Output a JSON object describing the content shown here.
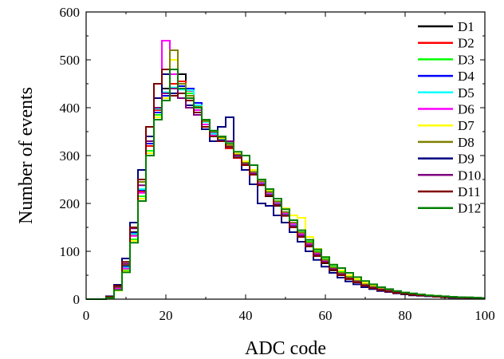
{
  "chart_data": {
    "type": "line",
    "step": true,
    "title": "",
    "xlabel": "ADC code",
    "ylabel": "Number of events",
    "xlim": [
      0,
      100
    ],
    "ylim": [
      0,
      600
    ],
    "xticks": [
      0,
      20,
      40,
      60,
      80,
      100
    ],
    "yticks": [
      0,
      100,
      200,
      300,
      400,
      500,
      600
    ],
    "grid": false,
    "legend_position": "top-right",
    "series": [
      {
        "name": "D1",
        "color": "#000000",
        "x": [
          0,
          5,
          7,
          9,
          11,
          13,
          15,
          17,
          19,
          21,
          23,
          25,
          27,
          29,
          31,
          33,
          35,
          37,
          39,
          41,
          43,
          45,
          47,
          49,
          51,
          53,
          55,
          57,
          59,
          61,
          63,
          65,
          67,
          69,
          71,
          73,
          75,
          77,
          79,
          81,
          83,
          85,
          87,
          89,
          91,
          93,
          95,
          97,
          99
        ],
        "values": [
          0,
          5,
          25,
          70,
          140,
          230,
          330,
          400,
          440,
          450,
          470,
          440,
          400,
          370,
          350,
          330,
          320,
          300,
          280,
          260,
          240,
          215,
          195,
          175,
          150,
          130,
          110,
          90,
          75,
          60,
          50,
          42,
          35,
          28,
          24,
          20,
          17,
          14,
          12,
          10,
          8,
          7,
          6,
          5,
          4,
          4,
          3,
          3,
          2
        ]
      },
      {
        "name": "D2",
        "color": "#ff0000",
        "x": [
          0,
          5,
          7,
          9,
          11,
          13,
          15,
          17,
          19,
          21,
          23,
          25,
          27,
          29,
          31,
          33,
          35,
          37,
          39,
          41,
          43,
          45,
          47,
          49,
          51,
          53,
          55,
          57,
          59,
          61,
          63,
          65,
          67,
          69,
          71,
          73,
          75,
          77,
          79,
          81,
          83,
          85,
          87,
          89,
          91,
          93,
          95,
          97,
          99
        ],
        "values": [
          0,
          4,
          22,
          65,
          135,
          225,
          320,
          395,
          430,
          450,
          455,
          435,
          400,
          370,
          345,
          330,
          315,
          295,
          280,
          262,
          242,
          220,
          200,
          178,
          155,
          135,
          115,
          95,
          80,
          65,
          55,
          45,
          38,
          30,
          25,
          21,
          18,
          15,
          12,
          10,
          9,
          7,
          6,
          5,
          4,
          4,
          3,
          3,
          2
        ]
      },
      {
        "name": "D3",
        "color": "#00ff00",
        "x": [
          0,
          5,
          7,
          9,
          11,
          13,
          15,
          17,
          19,
          21,
          23,
          25,
          27,
          29,
          31,
          33,
          35,
          37,
          39,
          41,
          43,
          45,
          47,
          49,
          51,
          53,
          55,
          57,
          59,
          61,
          63,
          65,
          67,
          69,
          71,
          73,
          75,
          77,
          79,
          81,
          83,
          85,
          87,
          89,
          91,
          93,
          95,
          97,
          99
        ],
        "values": [
          0,
          3,
          20,
          60,
          125,
          215,
          310,
          385,
          420,
          430,
          440,
          430,
          405,
          375,
          350,
          335,
          320,
          300,
          285,
          266,
          246,
          225,
          205,
          182,
          160,
          140,
          120,
          100,
          84,
          68,
          57,
          47,
          40,
          32,
          27,
          22,
          19,
          16,
          13,
          11,
          9,
          8,
          6,
          5,
          5,
          4,
          3,
          3,
          2
        ]
      },
      {
        "name": "D4",
        "color": "#0000ff",
        "x": [
          0,
          5,
          7,
          9,
          11,
          13,
          15,
          17,
          19,
          21,
          23,
          25,
          27,
          29,
          31,
          33,
          35,
          37,
          39,
          41,
          43,
          45,
          47,
          49,
          51,
          53,
          55,
          57,
          59,
          61,
          63,
          65,
          67,
          69,
          71,
          73,
          75,
          77,
          79,
          81,
          83,
          85,
          87,
          89,
          91,
          93,
          95,
          97,
          99
        ],
        "values": [
          0,
          4,
          24,
          68,
          138,
          228,
          325,
          390,
          425,
          440,
          445,
          440,
          410,
          372,
          346,
          332,
          318,
          298,
          280,
          262,
          240,
          218,
          198,
          176,
          152,
          132,
          112,
          92,
          78,
          63,
          52,
          43,
          36,
          29,
          24,
          20,
          17,
          14,
          12,
          10,
          8,
          7,
          6,
          5,
          4,
          4,
          3,
          3,
          2
        ]
      },
      {
        "name": "D5",
        "color": "#00ffff",
        "x": [
          0,
          5,
          7,
          9,
          11,
          13,
          15,
          17,
          19,
          21,
          23,
          25,
          27,
          29,
          31,
          33,
          35,
          37,
          39,
          41,
          43,
          45,
          47,
          49,
          51,
          53,
          55,
          57,
          59,
          61,
          63,
          65,
          67,
          69,
          71,
          73,
          75,
          77,
          79,
          81,
          83,
          85,
          87,
          89,
          91,
          93,
          95,
          97,
          99
        ],
        "values": [
          0,
          4,
          23,
          66,
          136,
          230,
          330,
          398,
          432,
          442,
          438,
          436,
          405,
          370,
          345,
          330,
          318,
          298,
          282,
          263,
          243,
          220,
          200,
          178,
          155,
          134,
          114,
          94,
          79,
          64,
          53,
          44,
          37,
          30,
          25,
          21,
          18,
          15,
          12,
          10,
          9,
          7,
          6,
          5,
          4,
          4,
          3,
          3,
          2
        ]
      },
      {
        "name": "D6",
        "color": "#ff00ff",
        "x": [
          0,
          5,
          7,
          9,
          11,
          13,
          15,
          17,
          19,
          21,
          23,
          25,
          27,
          29,
          31,
          33,
          35,
          37,
          39,
          41,
          43,
          45,
          47,
          49,
          51,
          53,
          55,
          57,
          59,
          61,
          63,
          65,
          67,
          69,
          71,
          73,
          75,
          77,
          79,
          81,
          83,
          85,
          87,
          89,
          91,
          93,
          95,
          97,
          99
        ],
        "values": [
          0,
          4,
          22,
          64,
          132,
          222,
          330,
          420,
          540,
          470,
          440,
          420,
          395,
          365,
          342,
          330,
          320,
          302,
          284,
          264,
          244,
          222,
          202,
          180,
          157,
          136,
          116,
          96,
          80,
          65,
          54,
          45,
          38,
          31,
          26,
          21,
          18,
          15,
          12,
          10,
          9,
          7,
          6,
          5,
          4,
          4,
          3,
          3,
          2
        ]
      },
      {
        "name": "D7",
        "color": "#ffff00",
        "x": [
          0,
          5,
          7,
          9,
          11,
          13,
          15,
          17,
          19,
          21,
          23,
          25,
          27,
          29,
          31,
          33,
          35,
          37,
          39,
          41,
          43,
          45,
          47,
          49,
          51,
          53,
          55,
          57,
          59,
          61,
          63,
          65,
          67,
          69,
          71,
          73,
          75,
          77,
          79,
          81,
          83,
          85,
          87,
          89,
          91,
          93,
          95,
          97,
          99
        ],
        "values": [
          0,
          3,
          18,
          58,
          122,
          210,
          305,
          380,
          420,
          500,
          450,
          425,
          400,
          372,
          350,
          336,
          322,
          304,
          288,
          270,
          250,
          228,
          210,
          190,
          175,
          170,
          130,
          105,
          88,
          72,
          60,
          50,
          42,
          34,
          28,
          23,
          20,
          16,
          13,
          11,
          9,
          8,
          7,
          5,
          5,
          4,
          3,
          3,
          2
        ]
      },
      {
        "name": "D8",
        "color": "#808000",
        "x": [
          0,
          5,
          7,
          9,
          11,
          13,
          15,
          17,
          19,
          21,
          23,
          25,
          27,
          29,
          31,
          33,
          35,
          37,
          39,
          41,
          43,
          45,
          47,
          49,
          51,
          53,
          55,
          57,
          59,
          61,
          63,
          65,
          67,
          69,
          71,
          73,
          75,
          77,
          79,
          81,
          83,
          85,
          87,
          89,
          91,
          93,
          95,
          97,
          99
        ],
        "values": [
          0,
          4,
          25,
          72,
          150,
          245,
          340,
          420,
          470,
          520,
          450,
          425,
          402,
          372,
          350,
          338,
          322,
          302,
          285,
          266,
          246,
          224,
          204,
          182,
          160,
          139,
          118,
          98,
          82,
          66,
          55,
          46,
          38,
          31,
          26,
          21,
          18,
          15,
          12,
          10,
          9,
          7,
          6,
          5,
          4,
          4,
          3,
          3,
          2
        ]
      },
      {
        "name": "D9",
        "color": "#000080",
        "x": [
          0,
          5,
          7,
          9,
          11,
          13,
          15,
          17,
          19,
          21,
          23,
          25,
          27,
          29,
          31,
          33,
          35,
          37,
          39,
          41,
          43,
          45,
          47,
          49,
          51,
          53,
          55,
          57,
          59,
          61,
          63,
          65,
          67,
          69,
          71,
          73,
          75,
          77,
          79,
          81,
          83,
          85,
          87,
          89,
          91,
          93,
          95,
          97,
          99
        ],
        "values": [
          0,
          6,
          30,
          85,
          160,
          270,
          340,
          420,
          470,
          430,
          420,
          405,
          385,
          355,
          330,
          360,
          380,
          300,
          270,
          240,
          200,
          195,
          175,
          160,
          140,
          120,
          100,
          82,
          68,
          55,
          45,
          37,
          31,
          25,
          21,
          17,
          15,
          12,
          10,
          8,
          7,
          6,
          5,
          4,
          3,
          3,
          3,
          2,
          2
        ]
      },
      {
        "name": "D10",
        "color": "#800080",
        "x": [
          0,
          5,
          7,
          9,
          11,
          13,
          15,
          17,
          19,
          21,
          23,
          25,
          27,
          29,
          31,
          33,
          35,
          37,
          39,
          41,
          43,
          45,
          47,
          49,
          51,
          53,
          55,
          57,
          59,
          61,
          63,
          65,
          67,
          69,
          71,
          73,
          75,
          77,
          79,
          81,
          83,
          85,
          87,
          89,
          91,
          93,
          95,
          97,
          99
        ],
        "values": [
          0,
          5,
          26,
          74,
          148,
          238,
          330,
          400,
          430,
          440,
          420,
          400,
          385,
          360,
          340,
          330,
          330,
          300,
          282,
          262,
          240,
          218,
          198,
          176,
          153,
          133,
          113,
          93,
          78,
          63,
          52,
          43,
          36,
          29,
          24,
          20,
          17,
          14,
          12,
          10,
          8,
          7,
          6,
          5,
          4,
          4,
          3,
          3,
          2
        ]
      },
      {
        "name": "D11",
        "color": "#800000",
        "x": [
          0,
          5,
          7,
          9,
          11,
          13,
          15,
          17,
          19,
          21,
          23,
          25,
          27,
          29,
          31,
          33,
          35,
          37,
          39,
          41,
          43,
          45,
          47,
          49,
          51,
          53,
          55,
          57,
          59,
          61,
          63,
          65,
          67,
          69,
          71,
          73,
          75,
          77,
          79,
          81,
          83,
          85,
          87,
          89,
          91,
          93,
          95,
          97,
          99
        ],
        "values": [
          0,
          5,
          28,
          78,
          150,
          250,
          360,
          450,
          480,
          425,
          430,
          415,
          390,
          360,
          340,
          330,
          318,
          296,
          280,
          260,
          238,
          216,
          196,
          174,
          150,
          130,
          110,
          90,
          76,
          61,
          50,
          42,
          35,
          28,
          23,
          19,
          16,
          13,
          11,
          9,
          8,
          7,
          5,
          4,
          4,
          3,
          3,
          2,
          2
        ]
      },
      {
        "name": "D12",
        "color": "#008000",
        "x": [
          0,
          5,
          7,
          9,
          11,
          13,
          15,
          17,
          19,
          21,
          23,
          25,
          27,
          29,
          31,
          33,
          35,
          37,
          39,
          41,
          43,
          45,
          47,
          49,
          51,
          53,
          55,
          57,
          59,
          61,
          63,
          65,
          67,
          69,
          71,
          73,
          75,
          77,
          79,
          81,
          83,
          85,
          87,
          89,
          91,
          93,
          95,
          97,
          99
        ],
        "values": [
          0,
          3,
          19,
          56,
          118,
          205,
          300,
          375,
          415,
          480,
          440,
          420,
          400,
          375,
          352,
          340,
          326,
          308,
          300,
          280,
          250,
          230,
          210,
          188,
          165,
          144,
          124,
          104,
          88,
          72,
          65,
          55,
          46,
          38,
          31,
          25,
          21,
          17,
          14,
          12,
          10,
          8,
          7,
          6,
          5,
          4,
          4,
          3,
          2
        ]
      }
    ]
  }
}
